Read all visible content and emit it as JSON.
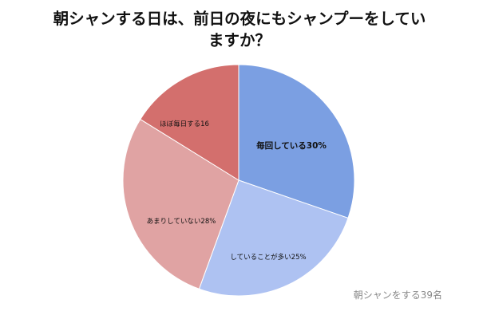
{
  "chart_data": {
    "type": "pie",
    "title_lines": [
      "朝シャンする日は、前日の夜にもシャンプーをしてい",
      "ますか？"
    ],
    "slices": [
      {
        "label": "毎回している30%",
        "value": 30,
        "color": "#7b9fe2"
      },
      {
        "label": "していることが多い25%",
        "value": 25,
        "color": "#aec2f2"
      },
      {
        "label": "あまりしていない28%",
        "value": 28,
        "color": "#e0a3a3"
      },
      {
        "label": "ほぼ毎日する16",
        "value": 16,
        "color": "#d36f6d"
      }
    ],
    "note": "朝シャンをする39名"
  }
}
